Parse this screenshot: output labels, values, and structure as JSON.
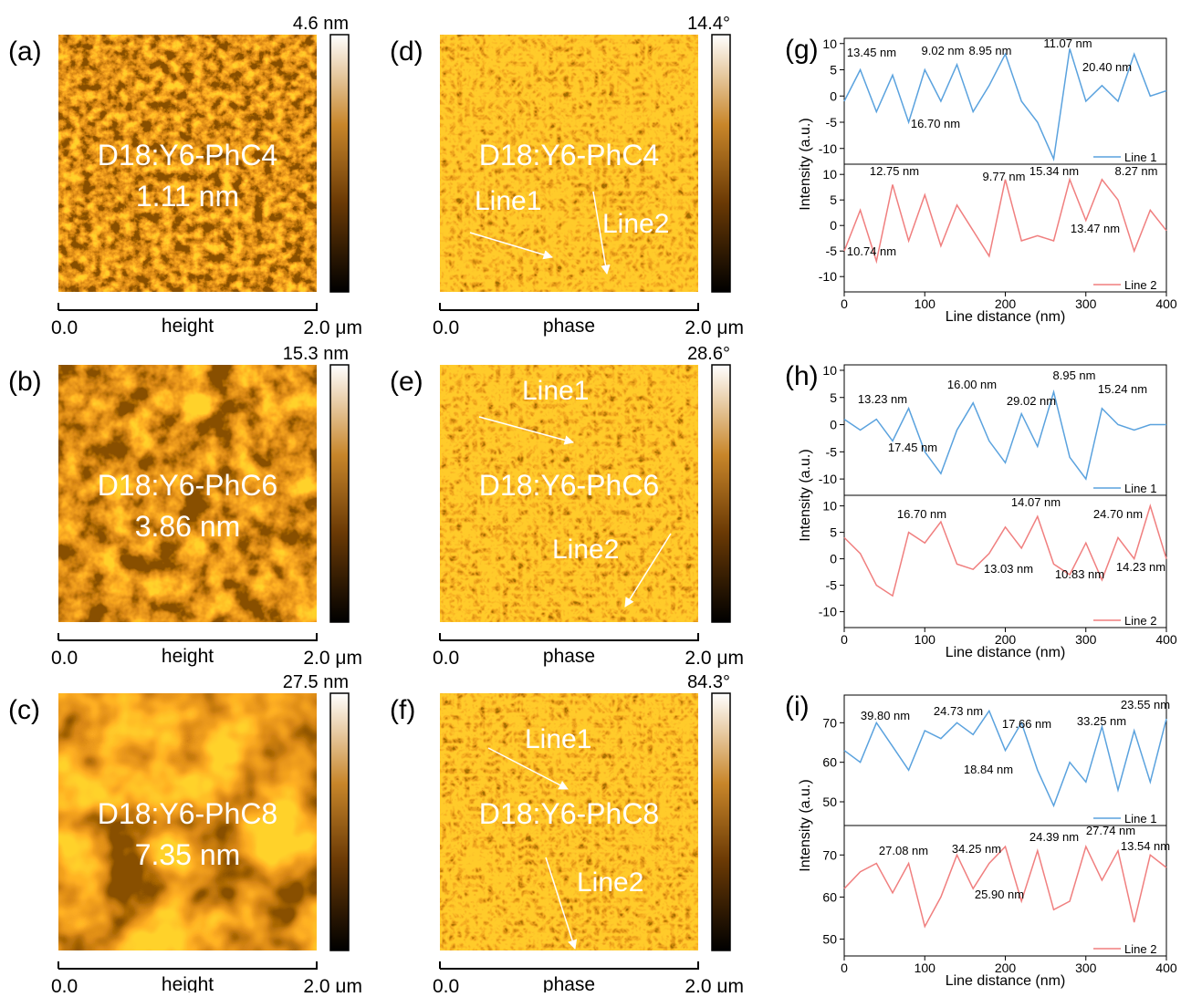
{
  "afm_panels": [
    {
      "label": "(a)",
      "sample": "D18:Y6-PhC4",
      "roughness": "1.11 nm",
      "scale_max": "4.6 nm",
      "mode": "height",
      "axis_start": "0.0",
      "axis_end": "2.0 μm"
    },
    {
      "label": "(b)",
      "sample": "D18:Y6-PhC6",
      "roughness": "3.86 nm",
      "scale_max": "15.3 nm",
      "mode": "height",
      "axis_start": "0.0",
      "axis_end": "2.0 μm"
    },
    {
      "label": "(c)",
      "sample": "D18:Y6-PhC8",
      "roughness": "7.35 nm",
      "scale_max": "27.5 nm",
      "mode": "height",
      "axis_start": "0.0",
      "axis_end": "2.0 μm"
    },
    {
      "label": "(d)",
      "sample": "D18:Y6-PhC4",
      "scale_max": "14.4°",
      "mode": "phase",
      "axis_start": "0.0",
      "axis_end": "2.0 μm",
      "lines": [
        "Line1",
        "Line2"
      ]
    },
    {
      "label": "(e)",
      "sample": "D18:Y6-PhC6",
      "scale_max": "28.6°",
      "mode": "phase",
      "axis_start": "0.0",
      "axis_end": "2.0 μm",
      "lines": [
        "Line1",
        "Line2"
      ]
    },
    {
      "label": "(f)",
      "sample": "D18:Y6-PhC8",
      "scale_max": "84.3°",
      "mode": "phase",
      "axis_start": "0.0",
      "axis_end": "2.0 μm",
      "lines": [
        "Line1",
        "Line2"
      ]
    }
  ],
  "chart_data": [
    {
      "type": "line",
      "panel": "(g)",
      "ylabel": "Intensity (a.u.)",
      "x": [
        0,
        20,
        40,
        60,
        80,
        100,
        120,
        140,
        160,
        180,
        200,
        220,
        240,
        260,
        280,
        300,
        320,
        340,
        360,
        380,
        400
      ],
      "xlim": [
        0,
        400
      ],
      "ylim": [
        -13,
        11
      ],
      "yticks": [
        -10,
        -5,
        0,
        5,
        10
      ],
      "series": [
        {
          "name": "Line 1",
          "color": "#5aa2de",
          "values": [
            -1,
            5,
            -3,
            4,
            -5,
            5,
            -1,
            6,
            -3,
            2,
            8,
            -1,
            -5,
            -12,
            9,
            -1,
            2,
            -1,
            8,
            0,
            1
          ]
        }
      ],
      "annotations": [
        "13.45 nm",
        "16.70 nm",
        "9.02 nm",
        "8.95 nm",
        "11.07 nm",
        "20.40 nm"
      ]
    },
    {
      "type": "line",
      "xlabel": "Line distance (nm)",
      "x": [
        0,
        20,
        40,
        60,
        80,
        100,
        120,
        140,
        160,
        180,
        200,
        220,
        240,
        260,
        280,
        300,
        320,
        340,
        360,
        380,
        400
      ],
      "xlim": [
        0,
        400
      ],
      "xticks": [
        0,
        100,
        200,
        300,
        400
      ],
      "ylim": [
        -13,
        12
      ],
      "yticks": [
        -10,
        -5,
        0,
        5,
        10
      ],
      "series": [
        {
          "name": "Line 2",
          "color": "#f07f7f",
          "values": [
            -5,
            3,
            -7,
            8,
            -3,
            6,
            -4,
            4,
            -1,
            -6,
            9,
            -3,
            -2,
            -3,
            9,
            1,
            9,
            5,
            -5,
            3,
            -1
          ]
        }
      ],
      "annotations": [
        "12.75 nm",
        "10.74 nm",
        "9.77 nm",
        "15.34 nm",
        "8.27 nm",
        "13.47 nm"
      ]
    },
    {
      "type": "line",
      "panel": "(h)",
      "ylabel": "Intensity (a.u.)",
      "x": [
        0,
        20,
        40,
        60,
        80,
        100,
        120,
        140,
        160,
        180,
        200,
        220,
        240,
        260,
        280,
        300,
        320,
        340,
        360,
        380,
        400
      ],
      "xlim": [
        0,
        400
      ],
      "ylim": [
        -13,
        11
      ],
      "yticks": [
        -10,
        -5,
        0,
        5,
        10
      ],
      "series": [
        {
          "name": "Line 1",
          "color": "#5aa2de",
          "values": [
            1,
            -1,
            1,
            -3,
            3,
            -5,
            -9,
            -1,
            4,
            -3,
            -7,
            2,
            -4,
            6,
            -6,
            -10,
            3,
            0,
            -1,
            0,
            0
          ]
        }
      ],
      "annotations": [
        "13.23 nm",
        "17.45 nm",
        "16.00 nm",
        "29.02 nm",
        "8.95 nm",
        "15.24 nm"
      ]
    },
    {
      "type": "line",
      "xlabel": "Line distance (nm)",
      "x": [
        0,
        20,
        40,
        60,
        80,
        100,
        120,
        140,
        160,
        180,
        200,
        220,
        240,
        260,
        280,
        300,
        320,
        340,
        360,
        380,
        400
      ],
      "xlim": [
        0,
        400
      ],
      "xticks": [
        0,
        100,
        200,
        300,
        400
      ],
      "ylim": [
        -13,
        12
      ],
      "yticks": [
        -10,
        -5,
        0,
        5,
        10
      ],
      "series": [
        {
          "name": "Line 2",
          "color": "#f07f7f",
          "values": [
            4,
            1,
            -5,
            -7,
            5,
            3,
            7,
            -1,
            -2,
            1,
            6,
            2,
            8,
            -1,
            -3,
            3,
            -4,
            4,
            0,
            10,
            0
          ]
        }
      ],
      "annotations": [
        "16.70 nm",
        "14.07 nm",
        "24.70 nm",
        "13.03 nm",
        "10.83 nm",
        "14.23 nm"
      ]
    },
    {
      "type": "line",
      "panel": "(i)",
      "ylabel": "Intensity (a.u.)",
      "x": [
        0,
        20,
        40,
        60,
        80,
        100,
        120,
        140,
        160,
        180,
        200,
        220,
        240,
        260,
        280,
        300,
        320,
        340,
        360,
        380,
        400
      ],
      "xlim": [
        0,
        400
      ],
      "ylim": [
        44,
        77
      ],
      "yticks": [
        50,
        60,
        70
      ],
      "series": [
        {
          "name": "Line 1",
          "color": "#5aa2de",
          "values": [
            63,
            60,
            70,
            64,
            58,
            68,
            66,
            70,
            67,
            73,
            63,
            70,
            58,
            49,
            60,
            55,
            69,
            53,
            68,
            55,
            71
          ]
        }
      ],
      "annotations": [
        "39.80 nm",
        "24.73 nm",
        "17.66 nm",
        "18.84 nm",
        "33.25 nm",
        "23.55 nm"
      ]
    },
    {
      "type": "line",
      "xlabel": "Line distance (nm)",
      "x": [
        0,
        20,
        40,
        60,
        80,
        100,
        120,
        140,
        160,
        180,
        200,
        220,
        240,
        260,
        280,
        300,
        320,
        340,
        360,
        380,
        400
      ],
      "xlim": [
        0,
        400
      ],
      "xticks": [
        0,
        100,
        200,
        300,
        400
      ],
      "ylim": [
        46,
        77
      ],
      "yticks": [
        50,
        60,
        70
      ],
      "series": [
        {
          "name": "Line 2",
          "color": "#f07f7f",
          "values": [
            62,
            66,
            68,
            61,
            68,
            53,
            60,
            70,
            62,
            68,
            72,
            59,
            71,
            57,
            59,
            72,
            64,
            71,
            54,
            70,
            67
          ]
        }
      ],
      "annotations": [
        "27.08 nm",
        "34.25 nm",
        "24.39 nm",
        "27.74 nm",
        "13.54 nm",
        "25.90 nm"
      ]
    }
  ]
}
